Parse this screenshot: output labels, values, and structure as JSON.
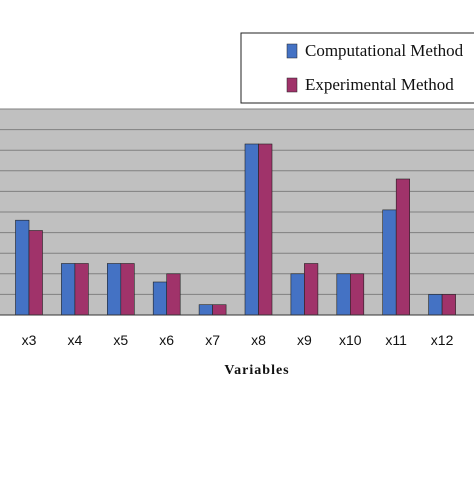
{
  "chart_data": {
    "type": "bar",
    "xlabel": "Variables",
    "ylabel": "",
    "title": "",
    "categories": [
      "x3",
      "x4",
      "x5",
      "x6",
      "x7",
      "x8",
      "x9",
      "x10",
      "x11",
      "x12"
    ],
    "series": [
      {
        "name": "Computational Method",
        "color": "#4472c4",
        "values": [
          4.6,
          2.5,
          2.5,
          1.6,
          0.5,
          8.3,
          2.0,
          2.0,
          5.1,
          1.0
        ]
      },
      {
        "name": "Experimental Method",
        "color": "#a0336a",
        "values": [
          4.1,
          2.5,
          2.5,
          2.0,
          0.5,
          8.3,
          2.5,
          2.0,
          6.6,
          1.0
        ]
      }
    ],
    "ylim": [
      0,
      10
    ],
    "grid": true,
    "legend_position": "top-right",
    "plot_background": "#c0c0c0"
  }
}
